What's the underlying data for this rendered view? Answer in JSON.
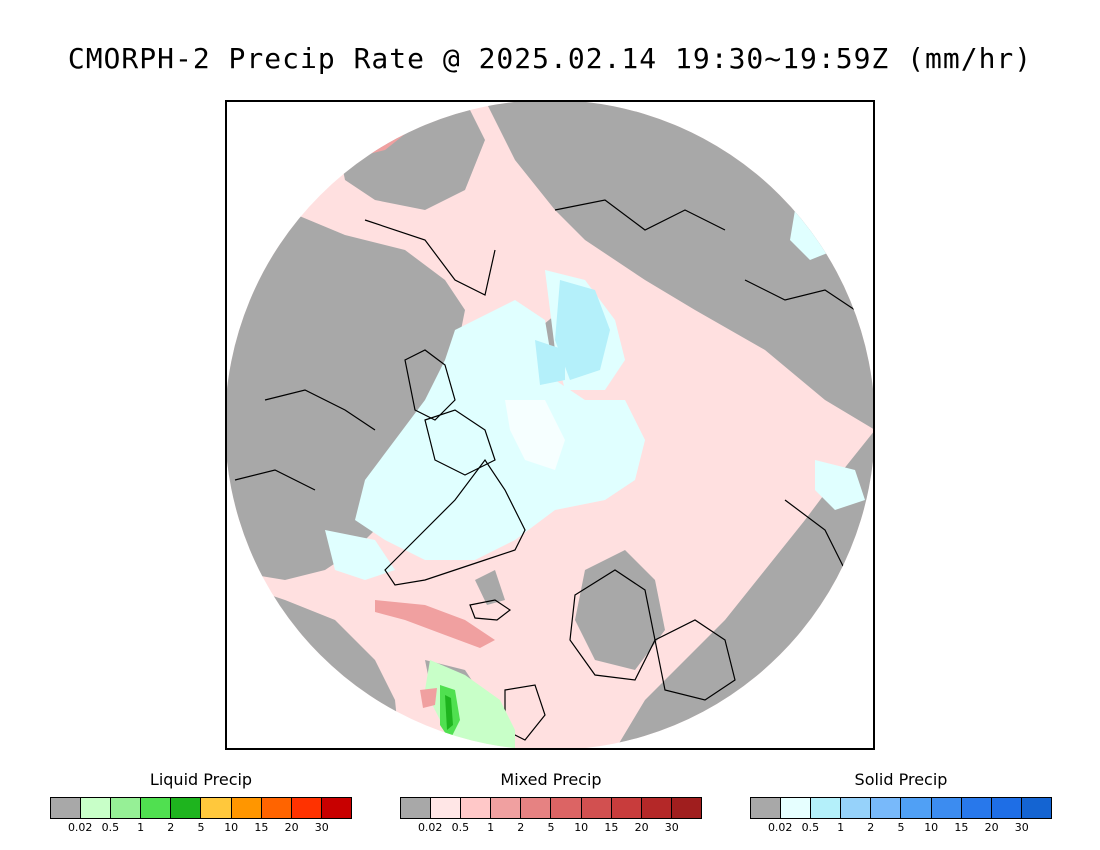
{
  "title": "CMORPH-2 Precip Rate @ 2025.02.14 19:30~19:59Z (mm/hr)",
  "colors": {
    "missing_gray": "#a8a8a8",
    "mixed_light": "#ffe0e0",
    "solid_light": "#e0ffff",
    "liquid_green": "#50e050",
    "coastline": "#000000"
  },
  "legends": [
    {
      "title": "Liquid Precip",
      "swatches": [
        "#a8a8a8",
        "#c8ffc8",
        "#96f096",
        "#50e050",
        "#1eb41e",
        "#ffc83c",
        "#ff9600",
        "#ff6400",
        "#ff3200",
        "#c80000"
      ],
      "ticks": [
        "0.02",
        "0.5",
        "1",
        "2",
        "5",
        "10",
        "15",
        "20",
        "30"
      ]
    },
    {
      "title": "Mixed Precip",
      "swatches": [
        "#a8a8a8",
        "#ffe6e6",
        "#ffc8c8",
        "#f0a0a0",
        "#e68282",
        "#dc6464",
        "#d25050",
        "#c83c3c",
        "#b42828",
        "#a01e1e"
      ],
      "ticks": [
        "0.02",
        "0.5",
        "1",
        "2",
        "5",
        "10",
        "15",
        "20",
        "30"
      ]
    },
    {
      "title": "Solid Precip",
      "swatches": [
        "#a8a8a8",
        "#e6ffff",
        "#b4f0fa",
        "#96d2fa",
        "#78b9fa",
        "#50a0f5",
        "#3c8cf0",
        "#2878eb",
        "#1e6ee6",
        "#1464d2"
      ],
      "ticks": [
        "0.02",
        "0.5",
        "1",
        "2",
        "5",
        "10",
        "15",
        "20",
        "30"
      ]
    }
  ]
}
